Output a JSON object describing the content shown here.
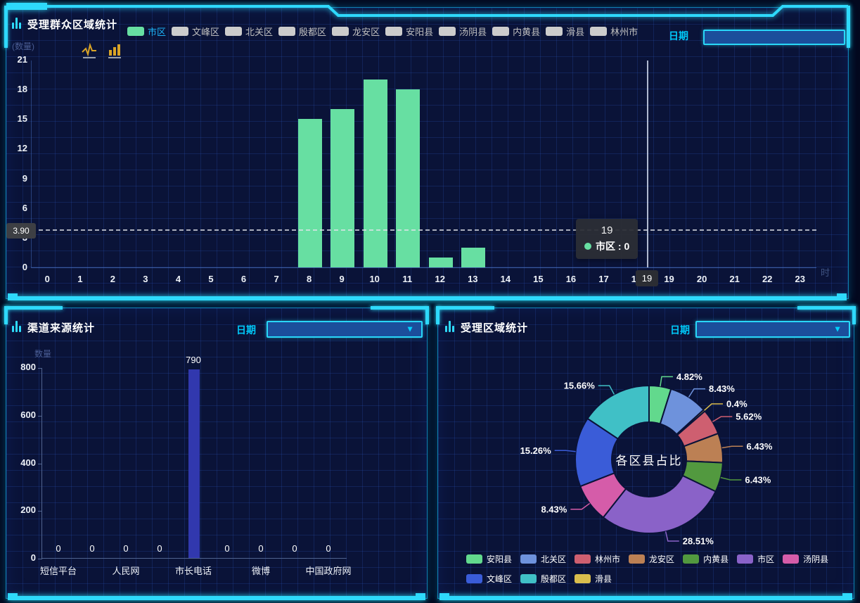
{
  "app": {
    "accent_color": "#2ed9fb",
    "panel_bg": "#0a1338"
  },
  "hourly_panel": {
    "title": "受理群众区域统计",
    "y_axis_name": "(数量)",
    "x_axis_name": "时",
    "date_label": "日期",
    "date_value": "",
    "toolbox_icons": [
      "magic-type-line",
      "magic-type-bar"
    ],
    "legend": [
      {
        "label": "市区",
        "selected": true
      },
      {
        "label": "文峰区",
        "selected": false
      },
      {
        "label": "北关区",
        "selected": false
      },
      {
        "label": "殷都区",
        "selected": false
      },
      {
        "label": "龙安区",
        "selected": false
      },
      {
        "label": "安阳县",
        "selected": false
      },
      {
        "label": "汤阴县",
        "selected": false
      },
      {
        "label": "内黄县",
        "selected": false
      },
      {
        "label": "滑县",
        "selected": false
      },
      {
        "label": "林州市",
        "selected": false
      }
    ],
    "selected_color": "#67dfa2",
    "inactive_color": "#cccccc",
    "selected_text_color": "#1cb1f5",
    "tooltip": {
      "title": "19",
      "series": "市区",
      "value": "0",
      "line2": "市区 : 0"
    },
    "markline_label": "3.90",
    "pointer_label": "19"
  },
  "channel_panel": {
    "title": "渠道来源统计",
    "y_axis_name": "数量",
    "date_label": "日期",
    "date_value": ""
  },
  "area_panel": {
    "title": "受理区域统计",
    "date_label": "日期",
    "date_value": "",
    "center_label": "各区县占比"
  },
  "chart_data": [
    {
      "id": "hourly",
      "type": "bar",
      "title": "受理群众区域统计",
      "x": [
        "0",
        "1",
        "2",
        "3",
        "4",
        "5",
        "6",
        "7",
        "8",
        "9",
        "10",
        "11",
        "12",
        "13",
        "14",
        "15",
        "16",
        "17",
        "18",
        "19",
        "20",
        "21",
        "22",
        "23"
      ],
      "xlabel": "时",
      "ylabel": "(数量)",
      "ylim": [
        0,
        21
      ],
      "yticks": [
        0,
        3,
        6,
        9,
        12,
        15,
        18,
        21
      ],
      "grid": true,
      "series": [
        {
          "name": "市区",
          "color": "#67dfa2",
          "values": [
            0,
            0,
            0,
            0,
            0,
            0,
            0,
            0,
            15,
            16,
            19,
            18,
            1,
            2,
            0,
            0,
            0,
            0,
            0,
            0,
            0,
            0,
            0,
            0
          ]
        }
      ],
      "average_line": 3.9,
      "axis_pointer": {
        "category": "19",
        "tooltip_series": "市区",
        "tooltip_value": 0
      }
    },
    {
      "id": "channel",
      "type": "bar",
      "title": "渠道来源统计",
      "slot_count": 9,
      "visible_label_slots": [
        0,
        2,
        4,
        6,
        8
      ],
      "categories": [
        "短信平台",
        "人民网",
        "市长电话",
        "微博",
        "中国政府网"
      ],
      "values": [
        0,
        0,
        0,
        0,
        790,
        0,
        0,
        0,
        0
      ],
      "value_labels": [
        "0",
        "0",
        "0",
        "0",
        "790",
        "0",
        "0",
        "0",
        "0"
      ],
      "bar_color": "#3138ae",
      "ylabel": "数量",
      "ylim": [
        0,
        800
      ],
      "yticks": [
        0,
        200,
        400,
        600,
        800
      ]
    },
    {
      "id": "area",
      "type": "pie",
      "title": "各区县占比",
      "slices": [
        {
          "name": "安阳县",
          "label": "4.82%",
          "value": 4.82,
          "color": "#62d98d"
        },
        {
          "name": "北关区",
          "label": "8.43%",
          "value": 8.43,
          "color": "#6e92dc"
        },
        {
          "name": "滑县",
          "label": "0.4%",
          "value": 0.4,
          "color": "#d9bd4d"
        },
        {
          "name": "林州市",
          "label": "5.62%",
          "value": 5.62,
          "color": "#ce5f70"
        },
        {
          "name": "龙安区",
          "label": "6.43%",
          "value": 6.43,
          "color": "#bc8054"
        },
        {
          "name": "内黄县",
          "label": "6.43%",
          "value": 6.43,
          "color": "#52993f"
        },
        {
          "name": "市区",
          "label": "28.51%",
          "value": 28.51,
          "color": "#8a62c8"
        },
        {
          "name": "汤阴县",
          "label": "8.43%",
          "value": 8.43,
          "color": "#d55ca9"
        },
        {
          "name": "文峰区",
          "label": "15.26%",
          "value": 15.26,
          "color": "#3a5cd8"
        },
        {
          "name": "殷都区",
          "label": "15.66%",
          "value": 15.66,
          "color": "#40c0c6"
        }
      ],
      "legend_order": [
        "安阳县",
        "北关区",
        "林州市",
        "龙安区",
        "内黄县",
        "市区",
        "汤阴县",
        "文峰区",
        "殷都区",
        "滑县"
      ],
      "legend_position": "bottom"
    }
  ]
}
